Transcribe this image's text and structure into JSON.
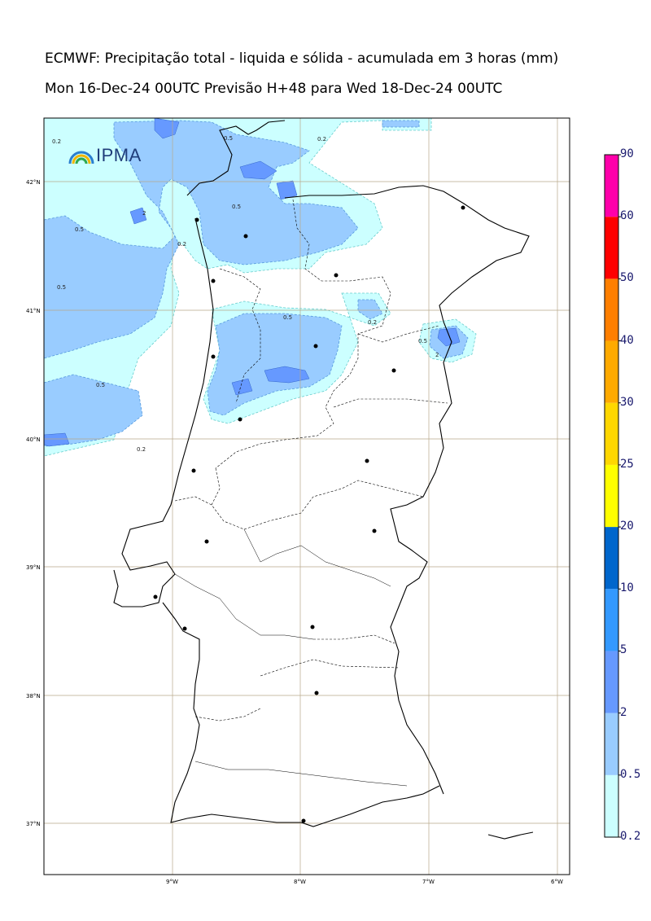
{
  "header": {
    "title_line1": "ECMWF: Precipitação total - liquida e sólida - acumulada em 3 horas (mm)",
    "title_line2": "Mon 16-Dec-24 00UTC Previsão H+48 para Wed 18-Dec-24 00UTC"
  },
  "logo": {
    "text": "IPMA",
    "name": "ipma-logo"
  },
  "map": {
    "latitude_labels": [
      "42°N",
      "41°N",
      "40°N",
      "39°N",
      "38°N",
      "37°N"
    ],
    "longitude_labels": [
      "9°W",
      "8°W",
      "7°W",
      "6°W"
    ],
    "contour_labels": [
      "0.2",
      "0.5",
      "2"
    ]
  },
  "colorbar": {
    "levels": [
      "0.2",
      "0.5",
      "2",
      "5",
      "10",
      "20",
      "25",
      "30",
      "40",
      "50",
      "60",
      "90"
    ],
    "colors": [
      "#ccffff",
      "#99ccff",
      "#6699ff",
      "#3399ff",
      "#0066cc",
      "#ffff00",
      "#ffd700",
      "#ffaa00",
      "#ff7f00",
      "#ff0000",
      "#ff00aa"
    ]
  }
}
